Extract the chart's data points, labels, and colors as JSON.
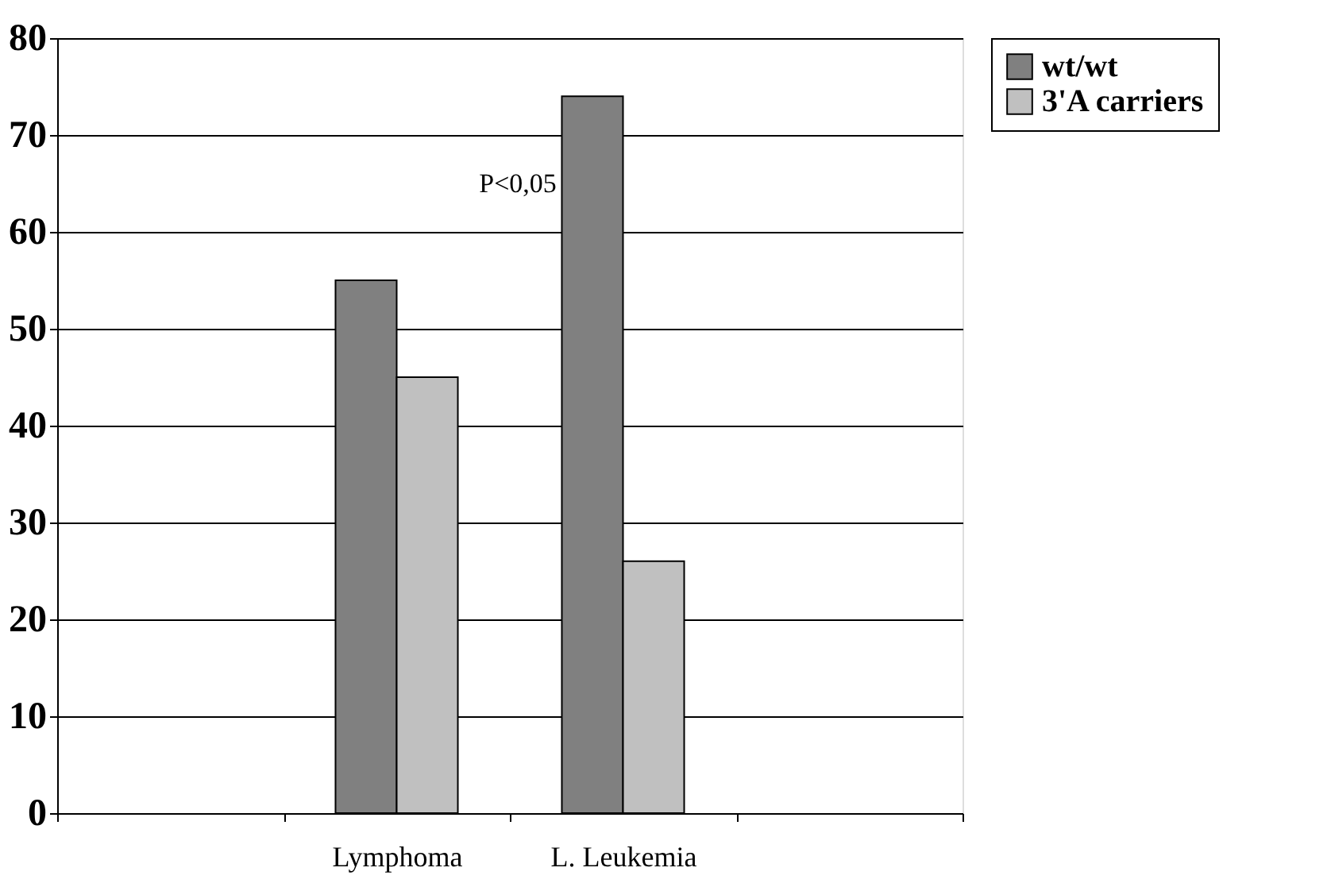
{
  "chart_data": {
    "type": "bar",
    "categories": [
      null,
      "Lymphoma",
      "L. Leukemia",
      null
    ],
    "series": [
      {
        "name": "wt/wt",
        "color": "#808080",
        "values": [
          null,
          55,
          74,
          null
        ]
      },
      {
        "name": "3'A carriers",
        "color": "#c0c0c0",
        "values": [
          null,
          45,
          26,
          null
        ]
      }
    ],
    "ylim": [
      0,
      80
    ],
    "yticks": [
      0,
      10,
      20,
      30,
      40,
      50,
      60,
      70,
      80
    ],
    "grid": "y",
    "legend": "right",
    "annotations": [
      "P<0,05"
    ]
  }
}
